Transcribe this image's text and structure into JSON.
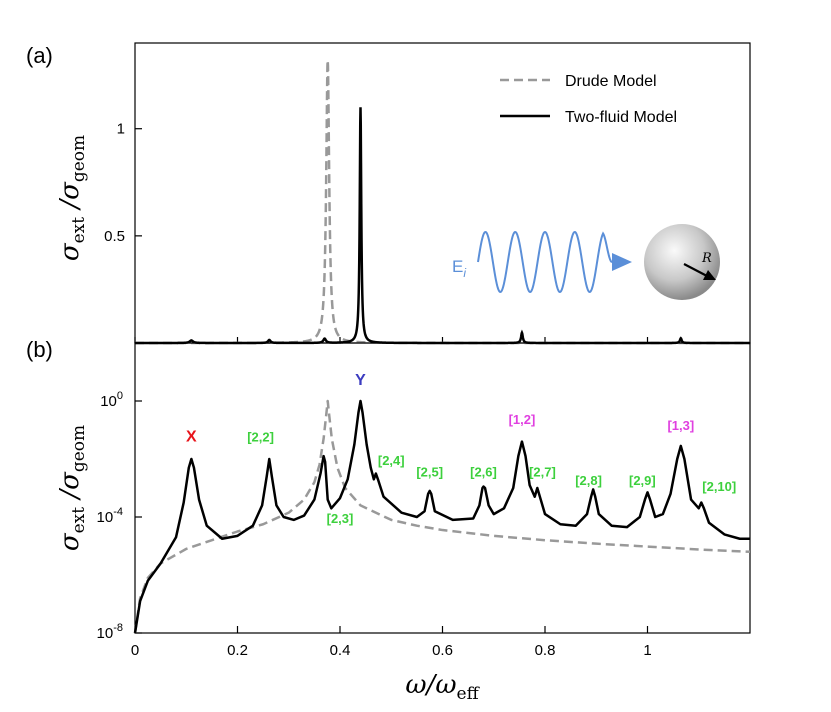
{
  "chart_data": [
    {
      "panel": "(a)",
      "type": "line",
      "scale": "linear",
      "xlim": [
        0,
        1.2
      ],
      "ylim": [
        0,
        1.4
      ],
      "ylabel": "σ_ext /σ_geom",
      "yticks": [
        0.5,
        1
      ],
      "ytick_labels": [
        "0.5",
        "1"
      ],
      "legend_position": "top-right",
      "series": [
        {
          "name": "Drude Model",
          "style": "dashed",
          "color": "#999999",
          "peaks": [
            {
              "x0": 0.376,
              "amp": 1.32,
              "w": 0.0035
            }
          ],
          "background": 0
        },
        {
          "name": "Two-fluid Model",
          "style": "solid",
          "color": "#000000",
          "peaks": [
            {
              "x0": 0.11,
              "amp": 0.012,
              "w": 0.004
            },
            {
              "x0": 0.262,
              "amp": 0.014,
              "w": 0.003
            },
            {
              "x0": 0.37,
              "amp": 0.02,
              "w": 0.003
            },
            {
              "x0": 0.44,
              "amp": 1.1,
              "w": 0.0018
            },
            {
              "x0": 0.755,
              "amp": 0.048,
              "w": 0.002
            },
            {
              "x0": 1.065,
              "amp": 0.022,
              "w": 0.002
            }
          ],
          "background": 0
        }
      ],
      "inset": {
        "field_label": "E",
        "field_sub": "i",
        "radius_label": "R"
      }
    },
    {
      "panel": "(b)",
      "type": "line",
      "scale": "log",
      "xlim": [
        0,
        1.2
      ],
      "ylim_exp": [
        -8,
        2
      ],
      "xlabel": "ω/ω_eff",
      "ylabel": "σ_ext /σ_geom",
      "xticks": [
        0,
        0.2,
        0.4,
        0.6,
        0.8,
        1
      ],
      "xtick_labels": [
        "0",
        "0.2",
        "0.4",
        "0.6",
        "0.8",
        "1"
      ],
      "yticks_exp": [
        -8,
        -4,
        0
      ],
      "ytick_labels": [
        {
          "base": "10",
          "exp": "-8"
        },
        {
          "base": "10",
          "exp": "-4"
        },
        {
          "base": "10",
          "exp": "0"
        }
      ],
      "series": [
        {
          "name": "Drude Model",
          "style": "dashed",
          "color": "#999999",
          "log_y_points": [
            [
              0,
              -8
            ],
            [
              0.01,
              -6.8
            ],
            [
              0.025,
              -6.1
            ],
            [
              0.05,
              -5.6
            ],
            [
              0.1,
              -5.1
            ],
            [
              0.15,
              -4.8
            ],
            [
              0.2,
              -4.5
            ],
            [
              0.25,
              -4.25
            ],
            [
              0.3,
              -3.85
            ],
            [
              0.33,
              -3.4
            ],
            [
              0.35,
              -2.8
            ],
            [
              0.36,
              -2.2
            ],
            [
              0.368,
              -1.3
            ],
            [
              0.373,
              -0.5
            ],
            [
              0.376,
              0.0
            ],
            [
              0.379,
              -0.5
            ],
            [
              0.384,
              -1.3
            ],
            [
              0.395,
              -2.3
            ],
            [
              0.41,
              -3.0
            ],
            [
              0.44,
              -3.6
            ],
            [
              0.5,
              -4.1
            ],
            [
              0.55,
              -4.3
            ],
            [
              0.6,
              -4.45
            ],
            [
              0.7,
              -4.65
            ],
            [
              0.8,
              -4.8
            ],
            [
              0.9,
              -4.92
            ],
            [
              1.0,
              -5.02
            ],
            [
              1.1,
              -5.12
            ],
            [
              1.2,
              -5.2
            ]
          ]
        },
        {
          "name": "Two-fluid Model",
          "style": "solid",
          "color": "#000000",
          "log_y_points": [
            [
              0,
              -8
            ],
            [
              0.01,
              -6.9
            ],
            [
              0.025,
              -6.2
            ],
            [
              0.05,
              -5.6
            ],
            [
              0.08,
              -4.7
            ],
            [
              0.095,
              -3.5
            ],
            [
              0.105,
              -2.3
            ],
            [
              0.11,
              -2.0
            ],
            [
              0.115,
              -2.3
            ],
            [
              0.125,
              -3.4
            ],
            [
              0.14,
              -4.3
            ],
            [
              0.17,
              -4.75
            ],
            [
              0.2,
              -4.65
            ],
            [
              0.23,
              -4.3
            ],
            [
              0.248,
              -3.6
            ],
            [
              0.257,
              -2.6
            ],
            [
              0.262,
              -2.0
            ],
            [
              0.267,
              -2.6
            ],
            [
              0.276,
              -3.6
            ],
            [
              0.29,
              -4.0
            ],
            [
              0.31,
              -4.1
            ],
            [
              0.33,
              -3.95
            ],
            [
              0.35,
              -3.4
            ],
            [
              0.362,
              -2.5
            ],
            [
              0.368,
              -1.9
            ],
            [
              0.371,
              -2.1
            ],
            [
              0.376,
              -3.4
            ],
            [
              0.383,
              -3.7
            ],
            [
              0.4,
              -3.35
            ],
            [
              0.415,
              -2.7
            ],
            [
              0.428,
              -1.5
            ],
            [
              0.436,
              -0.4
            ],
            [
              0.44,
              0.0
            ],
            [
              0.444,
              -0.4
            ],
            [
              0.452,
              -1.5
            ],
            [
              0.46,
              -2.3
            ],
            [
              0.466,
              -2.7
            ],
            [
              0.47,
              -2.5
            ],
            [
              0.474,
              -2.7
            ],
            [
              0.485,
              -3.3
            ],
            [
              0.52,
              -3.85
            ],
            [
              0.55,
              -4.0
            ],
            [
              0.565,
              -3.8
            ],
            [
              0.572,
              -3.2
            ],
            [
              0.575,
              -3.1
            ],
            [
              0.578,
              -3.2
            ],
            [
              0.585,
              -3.8
            ],
            [
              0.62,
              -4.1
            ],
            [
              0.66,
              -4.05
            ],
            [
              0.672,
              -3.6
            ],
            [
              0.678,
              -3.0
            ],
            [
              0.68,
              -2.95
            ],
            [
              0.683,
              -3.0
            ],
            [
              0.69,
              -3.6
            ],
            [
              0.7,
              -3.9
            ],
            [
              0.72,
              -3.7
            ],
            [
              0.738,
              -3.0
            ],
            [
              0.748,
              -1.9
            ],
            [
              0.755,
              -1.4
            ],
            [
              0.762,
              -1.9
            ],
            [
              0.77,
              -2.9
            ],
            [
              0.78,
              -3.3
            ],
            [
              0.785,
              -3.0
            ],
            [
              0.79,
              -3.3
            ],
            [
              0.8,
              -3.9
            ],
            [
              0.83,
              -4.25
            ],
            [
              0.86,
              -4.3
            ],
            [
              0.882,
              -3.9
            ],
            [
              0.89,
              -3.3
            ],
            [
              0.894,
              -3.05
            ],
            [
              0.898,
              -3.3
            ],
            [
              0.905,
              -3.9
            ],
            [
              0.93,
              -4.3
            ],
            [
              0.96,
              -4.35
            ],
            [
              0.985,
              -4.0
            ],
            [
              0.995,
              -3.4
            ],
            [
              1.0,
              -3.15
            ],
            [
              1.005,
              -3.4
            ],
            [
              1.015,
              -4.0
            ],
            [
              1.03,
              -3.9
            ],
            [
              1.045,
              -3.2
            ],
            [
              1.058,
              -2.0
            ],
            [
              1.065,
              -1.55
            ],
            [
              1.072,
              -2.0
            ],
            [
              1.085,
              -3.4
            ],
            [
              1.1,
              -3.7
            ],
            [
              1.105,
              -3.5
            ],
            [
              1.11,
              -3.7
            ],
            [
              1.12,
              -4.2
            ],
            [
              1.15,
              -4.6
            ],
            [
              1.18,
              -4.75
            ],
            [
              1.2,
              -4.75
            ]
          ]
        }
      ],
      "annotations": [
        {
          "text": "X",
          "color": "#e8141b",
          "x": 0.11,
          "y_exp": -1.4,
          "type": "peak"
        },
        {
          "text": "Y",
          "color": "#3c3cc0",
          "x": 0.44,
          "y_exp": 0.55,
          "type": "peak"
        },
        {
          "text": "[2,2]",
          "color": "#3dd03d",
          "x": 0.245,
          "y_exp": -1.4,
          "type": "mode"
        },
        {
          "text": "[2,3]",
          "color": "#3dd03d",
          "x": 0.4,
          "y_exp": -4.2,
          "type": "mode"
        },
        {
          "text": "[2,4]",
          "color": "#3dd03d",
          "x": 0.5,
          "y_exp": -2.2,
          "type": "mode"
        },
        {
          "text": "[2,5]",
          "color": "#3dd03d",
          "x": 0.575,
          "y_exp": -2.6,
          "type": "mode"
        },
        {
          "text": "[2,6]",
          "color": "#3dd03d",
          "x": 0.68,
          "y_exp": -2.6,
          "type": "mode"
        },
        {
          "text": "[1,2]",
          "color": "#e040e0",
          "x": 0.755,
          "y_exp": -0.8,
          "type": "mode"
        },
        {
          "text": "[2,7]",
          "color": "#3dd03d",
          "x": 0.795,
          "y_exp": -2.6,
          "type": "mode"
        },
        {
          "text": "[2,8]",
          "color": "#3dd03d",
          "x": 0.885,
          "y_exp": -2.9,
          "type": "mode"
        },
        {
          "text": "[2,9]",
          "color": "#3dd03d",
          "x": 0.99,
          "y_exp": -2.9,
          "type": "mode"
        },
        {
          "text": "[1,3]",
          "color": "#e040e0",
          "x": 1.065,
          "y_exp": -1.0,
          "type": "mode"
        },
        {
          "text": "[2,10]",
          "color": "#3dd03d",
          "x": 1.14,
          "y_exp": -3.1,
          "type": "mode"
        }
      ]
    }
  ],
  "xlabel_parts": {
    "num": "ω",
    "den": "ω",
    "sub": "eff"
  },
  "ylabel_parts": {
    "sym": "σ",
    "sub1": "ext",
    "sub2": "geom"
  }
}
